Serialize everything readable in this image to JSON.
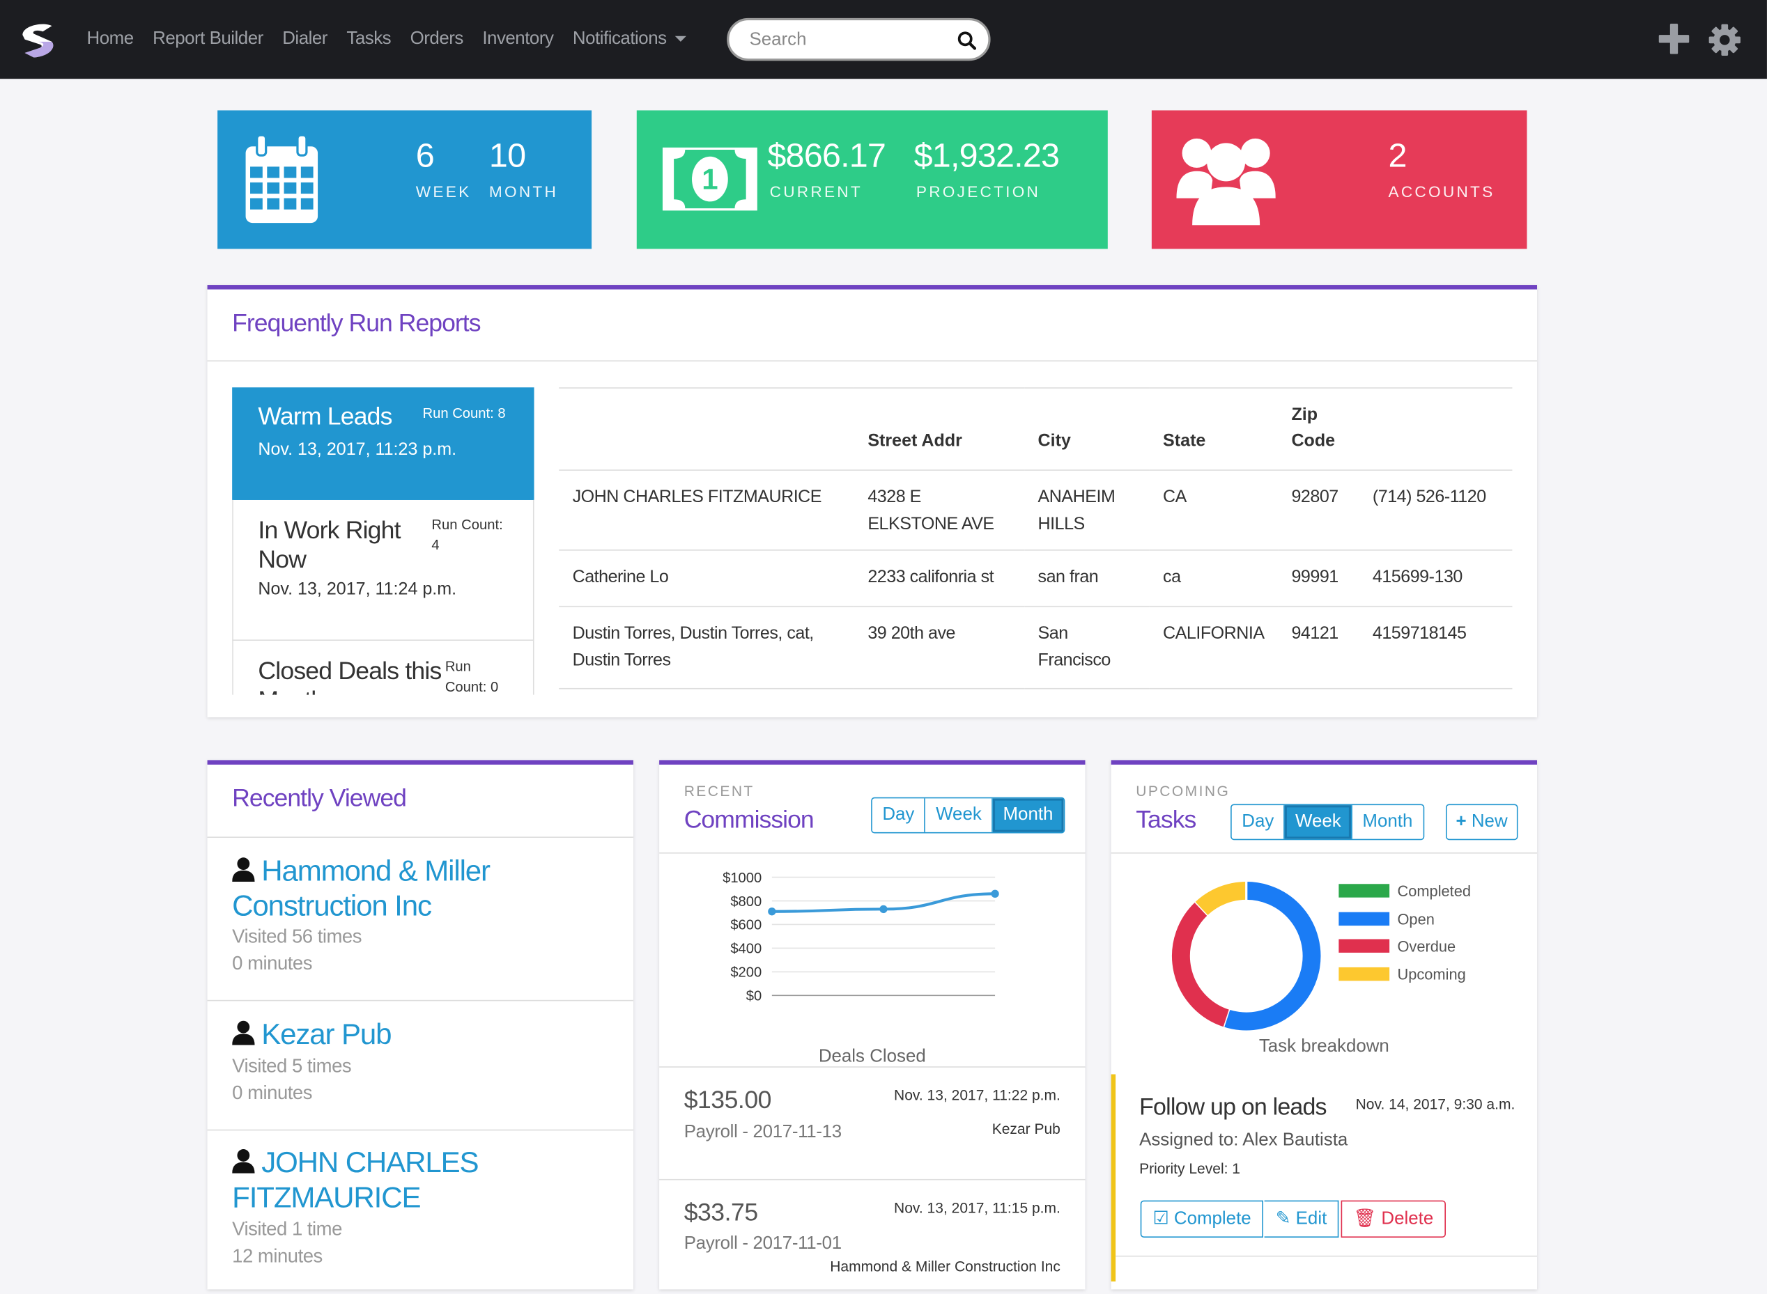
{
  "nav": {
    "items": [
      "Home",
      "Report Builder",
      "Dialer",
      "Tasks",
      "Orders",
      "Inventory"
    ],
    "notifications_label": "Notifications",
    "search_placeholder": "Search"
  },
  "stats": {
    "week_value": "6",
    "week_label": "WEEK",
    "month_value": "10",
    "month_label": "MONTH",
    "current_value": "$866.17",
    "current_label": "CURRENT",
    "projection_value": "$1,932.23",
    "projection_label": "PROJECTION",
    "accounts_value": "2",
    "accounts_label": "ACCOUNTS",
    "colors": {
      "blue": "#2196d0",
      "green": "#2ecc88",
      "red": "#e63b58"
    }
  },
  "reports": {
    "title": "Frequently Run Reports",
    "list": [
      {
        "name": "Warm Leads",
        "count": "Run Count: 8",
        "date": "Nov. 13, 2017, 11:23 p.m."
      },
      {
        "name": "In Work Right Now",
        "count": "Run Count: 4",
        "date": "Nov. 13, 2017, 11:24 p.m."
      },
      {
        "name": "Closed Deals this Month",
        "count": "Run Count: 0",
        "date": ""
      }
    ],
    "columns": [
      "",
      "Street Addr",
      "City",
      "State",
      "Zip Code",
      ""
    ],
    "rows": [
      [
        "JOHN CHARLES FITZMAURICE",
        "4328 E ELKSTONE AVE",
        "ANAHEIM HILLS",
        "CA",
        "92807",
        "(714) 526-1120"
      ],
      [
        "Catherine Lo",
        "2233 califonria st",
        "san fran",
        "ca",
        "99991",
        "415699-130"
      ],
      [
        "Dustin Torres, Dustin Torres, cat, Dustin Torres",
        "39 20th ave",
        "San Francisco",
        "CALIFORNIA",
        "94121",
        "4159718145"
      ]
    ]
  },
  "recently_viewed": {
    "title": "Recently Viewed",
    "items": [
      {
        "name": "Hammond & Miller Construction Inc",
        "visits": "Visited 56 times",
        "duration": "0 minutes"
      },
      {
        "name": "Kezar Pub",
        "visits": "Visited 5 times",
        "duration": "0 minutes"
      },
      {
        "name": "JOHN CHARLES FITZMAURICE",
        "visits": "Visited 1 time",
        "duration": "12 minutes"
      }
    ]
  },
  "commission": {
    "label": "RECENT",
    "title": "Commission",
    "tabs": [
      "Day",
      "Week",
      "Month"
    ],
    "active_tab": "Month",
    "items": [
      {
        "amount": "$135.00",
        "desc": "Payroll - 2017-11-13",
        "date": "Nov. 13, 2017, 11:22 p.m.",
        "account": "Kezar Pub"
      },
      {
        "amount": "$33.75",
        "desc": "Payroll - 2017-11-01",
        "date": "Nov. 13, 2017, 11:15 p.m.",
        "account": "Hammond & Miller Construction Inc"
      }
    ]
  },
  "tasks": {
    "label": "UPCOMING",
    "title": "Tasks",
    "tabs": [
      "Day",
      "Week",
      "Month"
    ],
    "active_tab": "Week",
    "new_label": "New",
    "card": {
      "title": "Follow up on leads",
      "date": "Nov. 14, 2017, 9:30 a.m.",
      "assigned": "Assigned to: Alex Bautista",
      "priority": "Priority Level: 1",
      "complete_label": "Complete",
      "edit_label": "Edit",
      "delete_label": "Delete"
    }
  },
  "chart_data": [
    {
      "type": "line",
      "title": "",
      "xlabel": "Deals Closed",
      "ylabel": "",
      "x": [
        1,
        2,
        3
      ],
      "series": [
        {
          "values": [
            710,
            730,
            860
          ],
          "color": "#3a9ad9"
        }
      ],
      "yticks": [
        "$1000",
        "$800",
        "$600",
        "$400",
        "$200",
        "$0"
      ],
      "ylim": [
        0,
        1000
      ],
      "grid": true
    },
    {
      "type": "pie",
      "title": "",
      "xlabel": "Task breakdown",
      "donut": true,
      "labels": [
        "Completed",
        "Open",
        "Overdue",
        "Upcoming"
      ],
      "values": [
        0,
        55,
        33,
        12
      ],
      "colors": [
        "#2ba84a",
        "#1a7cf5",
        "#e0304e",
        "#fdc82f"
      ],
      "legend": "right"
    }
  ]
}
